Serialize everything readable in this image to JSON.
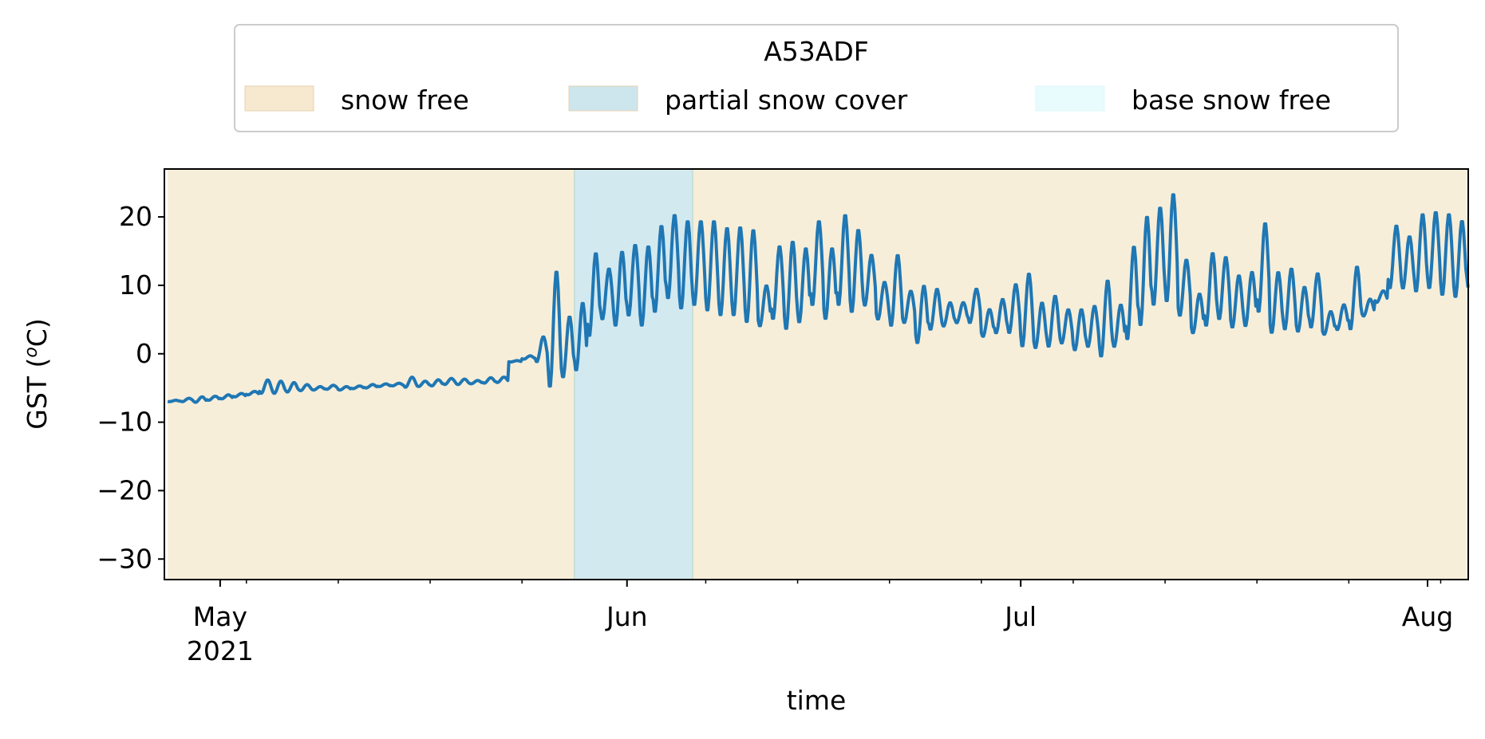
{
  "chart_data": {
    "type": "line",
    "title": "",
    "xlabel": "time",
    "ylabel": "GST (ᴼC)",
    "ylabel_parts": {
      "prefix": "GST (",
      "superscript": "o",
      "suffix": "C)"
    },
    "ylim": [
      -33,
      27
    ],
    "yticks": [
      -30,
      -20,
      -10,
      0,
      10,
      20
    ],
    "ytick_labels": [
      "−30",
      "−20",
      "−10",
      "0",
      "10",
      "20"
    ],
    "xlim": [
      "2021-04-27",
      "2021-08-04"
    ],
    "xticks_major": [
      {
        "date": "2021-05-01",
        "label": "May",
        "sublabel": "2021"
      },
      {
        "date": "2021-06-01",
        "label": "Jun",
        "sublabel": ""
      },
      {
        "date": "2021-07-01",
        "label": "Jul",
        "sublabel": ""
      },
      {
        "date": "2021-08-01",
        "label": "Aug",
        "sublabel": ""
      }
    ],
    "xticks_minor": [
      "2021-05-03",
      "2021-05-10",
      "2021-05-17",
      "2021-05-24",
      "2021-06-07",
      "2021-06-14",
      "2021-06-21",
      "2021-06-28",
      "2021-07-05",
      "2021-07-12",
      "2021-07-19",
      "2021-07-26",
      "2021-08-02"
    ],
    "legend": {
      "title": "A53ADF",
      "placement": "top-center (above plot)",
      "entries": [
        {
          "label": "snow free",
          "color": "#f7e9cf"
        },
        {
          "label": "partial snow cover",
          "color": "#cde6ee"
        },
        {
          "label": "base snow free",
          "color": "#e8fbfd"
        }
      ]
    },
    "spans": [
      {
        "category": "snow free",
        "start": "2021-04-27",
        "end": "2021-05-28",
        "color": "#f7eed9"
      },
      {
        "category": "partial snow cover",
        "start": "2021-05-28",
        "end": "2021-06-06",
        "color": "#d3e9f0"
      },
      {
        "category": "snow free",
        "start": "2021-06-06",
        "end": "2021-08-04",
        "color": "#f7eed9"
      }
    ],
    "series": [
      {
        "line_color": "#1f77b4",
        "x": [
          "2021-04-27",
          "2021-04-28",
          "2021-04-29",
          "2021-04-30",
          "2021-05-01",
          "2021-05-02",
          "2021-05-03",
          "2021-05-04",
          "2021-05-05",
          "2021-05-06",
          "2021-05-07",
          "2021-05-08",
          "2021-05-09",
          "2021-05-10",
          "2021-05-11",
          "2021-05-12",
          "2021-05-13",
          "2021-05-14",
          "2021-05-15",
          "2021-05-16",
          "2021-05-17",
          "2021-05-18",
          "2021-05-19",
          "2021-05-20",
          "2021-05-21",
          "2021-05-22",
          "2021-05-23",
          "2021-05-24",
          "2021-05-25",
          "2021-05-26",
          "2021-05-27",
          "2021-05-28",
          "2021-05-29",
          "2021-05-30",
          "2021-05-31",
          "2021-06-01",
          "2021-06-02",
          "2021-06-03",
          "2021-06-04",
          "2021-06-05",
          "2021-06-06",
          "2021-06-07",
          "2021-06-08",
          "2021-06-09",
          "2021-06-10",
          "2021-06-11",
          "2021-06-12",
          "2021-06-13",
          "2021-06-14",
          "2021-06-15",
          "2021-06-16",
          "2021-06-17",
          "2021-06-18",
          "2021-06-19",
          "2021-06-20",
          "2021-06-21",
          "2021-06-22",
          "2021-06-23",
          "2021-06-24",
          "2021-06-25",
          "2021-06-26",
          "2021-06-27",
          "2021-06-28",
          "2021-06-29",
          "2021-06-30",
          "2021-07-01",
          "2021-07-02",
          "2021-07-03",
          "2021-07-04",
          "2021-07-05",
          "2021-07-06",
          "2021-07-07",
          "2021-07-08",
          "2021-07-09",
          "2021-07-10",
          "2021-07-11",
          "2021-07-12",
          "2021-07-13",
          "2021-07-14",
          "2021-07-15",
          "2021-07-16",
          "2021-07-17",
          "2021-07-18",
          "2021-07-19",
          "2021-07-20",
          "2021-07-21",
          "2021-07-22",
          "2021-07-23",
          "2021-07-24",
          "2021-07-25",
          "2021-07-26",
          "2021-07-27",
          "2021-07-28",
          "2021-07-29",
          "2021-07-30",
          "2021-07-31",
          "2021-08-01",
          "2021-08-02",
          "2021-08-03",
          "2021-08-04"
        ],
        "daily_max": [
          -6.8,
          -6.5,
          -6.3,
          -6.2,
          -6,
          -5.8,
          -5.5,
          -3.8,
          -4,
          -4.2,
          -4.5,
          -4.8,
          -4.6,
          -4.8,
          -4.7,
          -4.5,
          -4.4,
          -4.3,
          -3.4,
          -4,
          -3.8,
          -3.6,
          -3.7,
          -3.9,
          -3.5,
          -3.4,
          -1,
          -0.3,
          2.5,
          12.2,
          5.5,
          7.5,
          14.8,
          12.5,
          15,
          16,
          15.8,
          18.8,
          20.4,
          19.5,
          19.5,
          19.5,
          18.5,
          18.6,
          18.2,
          10,
          15.8,
          16.5,
          15.5,
          19.5,
          15.5,
          20.4,
          18.2,
          14.5,
          10.5,
          14.5,
          9.2,
          10,
          9.5,
          7.5,
          7.5,
          9.5,
          6.5,
          8,
          10.2,
          11.8,
          7.5,
          8.5,
          6.5,
          6.5,
          7,
          10.8,
          7.2,
          15.8,
          20.2,
          21.5,
          23.5,
          13.8,
          8.8,
          14.8,
          14.2,
          11.5,
          12,
          19.2,
          12,
          12.5,
          9.8,
          11.8,
          6.2,
          7.2,
          12.8,
          8,
          9.2,
          18.8,
          17.2,
          20.5,
          20.8,
          20.5,
          19.5,
          20.2
        ],
        "daily_min": [
          -7,
          -7,
          -7.1,
          -6.8,
          -6.6,
          -6.3,
          -6,
          -5.8,
          -5.8,
          -5.6,
          -5.4,
          -5.3,
          -5.2,
          -5.3,
          -5.1,
          -5,
          -4.8,
          -4.7,
          -4.9,
          -4.8,
          -4.7,
          -4.5,
          -4.5,
          -4.4,
          -4.3,
          -4.2,
          -1.2,
          -0.8,
          -1.2,
          -5,
          -3.5,
          -2.5,
          2.5,
          5,
          4,
          5.5,
          4,
          6,
          8,
          6.5,
          7,
          6.2,
          5.5,
          5.5,
          4.5,
          4,
          5,
          3.5,
          4.5,
          7,
          5,
          7,
          6,
          7,
          5,
          4,
          4.5,
          1.5,
          3.5,
          4,
          4.5,
          4.5,
          2.5,
          3,
          3,
          1,
          0.8,
          1,
          1.5,
          0.5,
          1,
          -0.5,
          1,
          2,
          4,
          7,
          7.5,
          5.5,
          3,
          4,
          5,
          3.8,
          4,
          6,
          3,
          3.5,
          3.2,
          3.8,
          2.8,
          3.5,
          3.5,
          5.5,
          7.5,
          9.5,
          9.5,
          9,
          9.5,
          8.5,
          8.2,
          9.5
        ]
      }
    ]
  }
}
